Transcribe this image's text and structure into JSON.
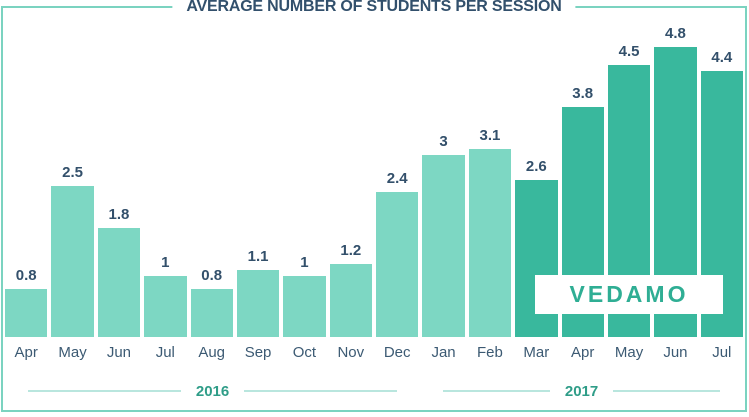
{
  "title": "AVERAGE NUMBER OF STUDENTS PER SESSION",
  "logo": {
    "text": "VEDAMO"
  },
  "colors": {
    "bar_light": "#7dd7c3",
    "bar_dark": "#39b89d",
    "title_text": "#32506c",
    "value_text": "#33506b",
    "month_text": "#3c5a73",
    "year_text": "#2f9d88",
    "frame_border": "#7bd3c0",
    "year_line": "#b9e6de",
    "logo_text": "#2fae94"
  },
  "chart_data": {
    "type": "bar",
    "title": "AVERAGE NUMBER OF STUDENTS PER SESSION",
    "categories": [
      "Apr",
      "May",
      "Jun",
      "Jul",
      "Aug",
      "Sep",
      "Oct",
      "Nov",
      "Dec",
      "Jan",
      "Feb",
      "Mar",
      "Apr",
      "May",
      "Jun",
      "Jul"
    ],
    "values": [
      0.8,
      2.5,
      1.8,
      1,
      0.8,
      1.1,
      1,
      1.2,
      2.4,
      3,
      3.1,
      2.6,
      3.8,
      4.5,
      4.8,
      4.4
    ],
    "value_labels": [
      "0.8",
      "2.5",
      "1.8",
      "1",
      "0.8",
      "1.1",
      "1",
      "1.2",
      "2.4",
      "3",
      "3.1",
      "2.6",
      "3.8",
      "4.5",
      "4.8",
      "4.4"
    ],
    "dark_from_index": 11,
    "xlabel": "",
    "ylabel": "",
    "ylim": [
      0,
      5
    ],
    "grid": false,
    "legend": false
  },
  "years": [
    {
      "label": "2016",
      "months": 9
    },
    {
      "label": "2017",
      "months": 7
    }
  ]
}
